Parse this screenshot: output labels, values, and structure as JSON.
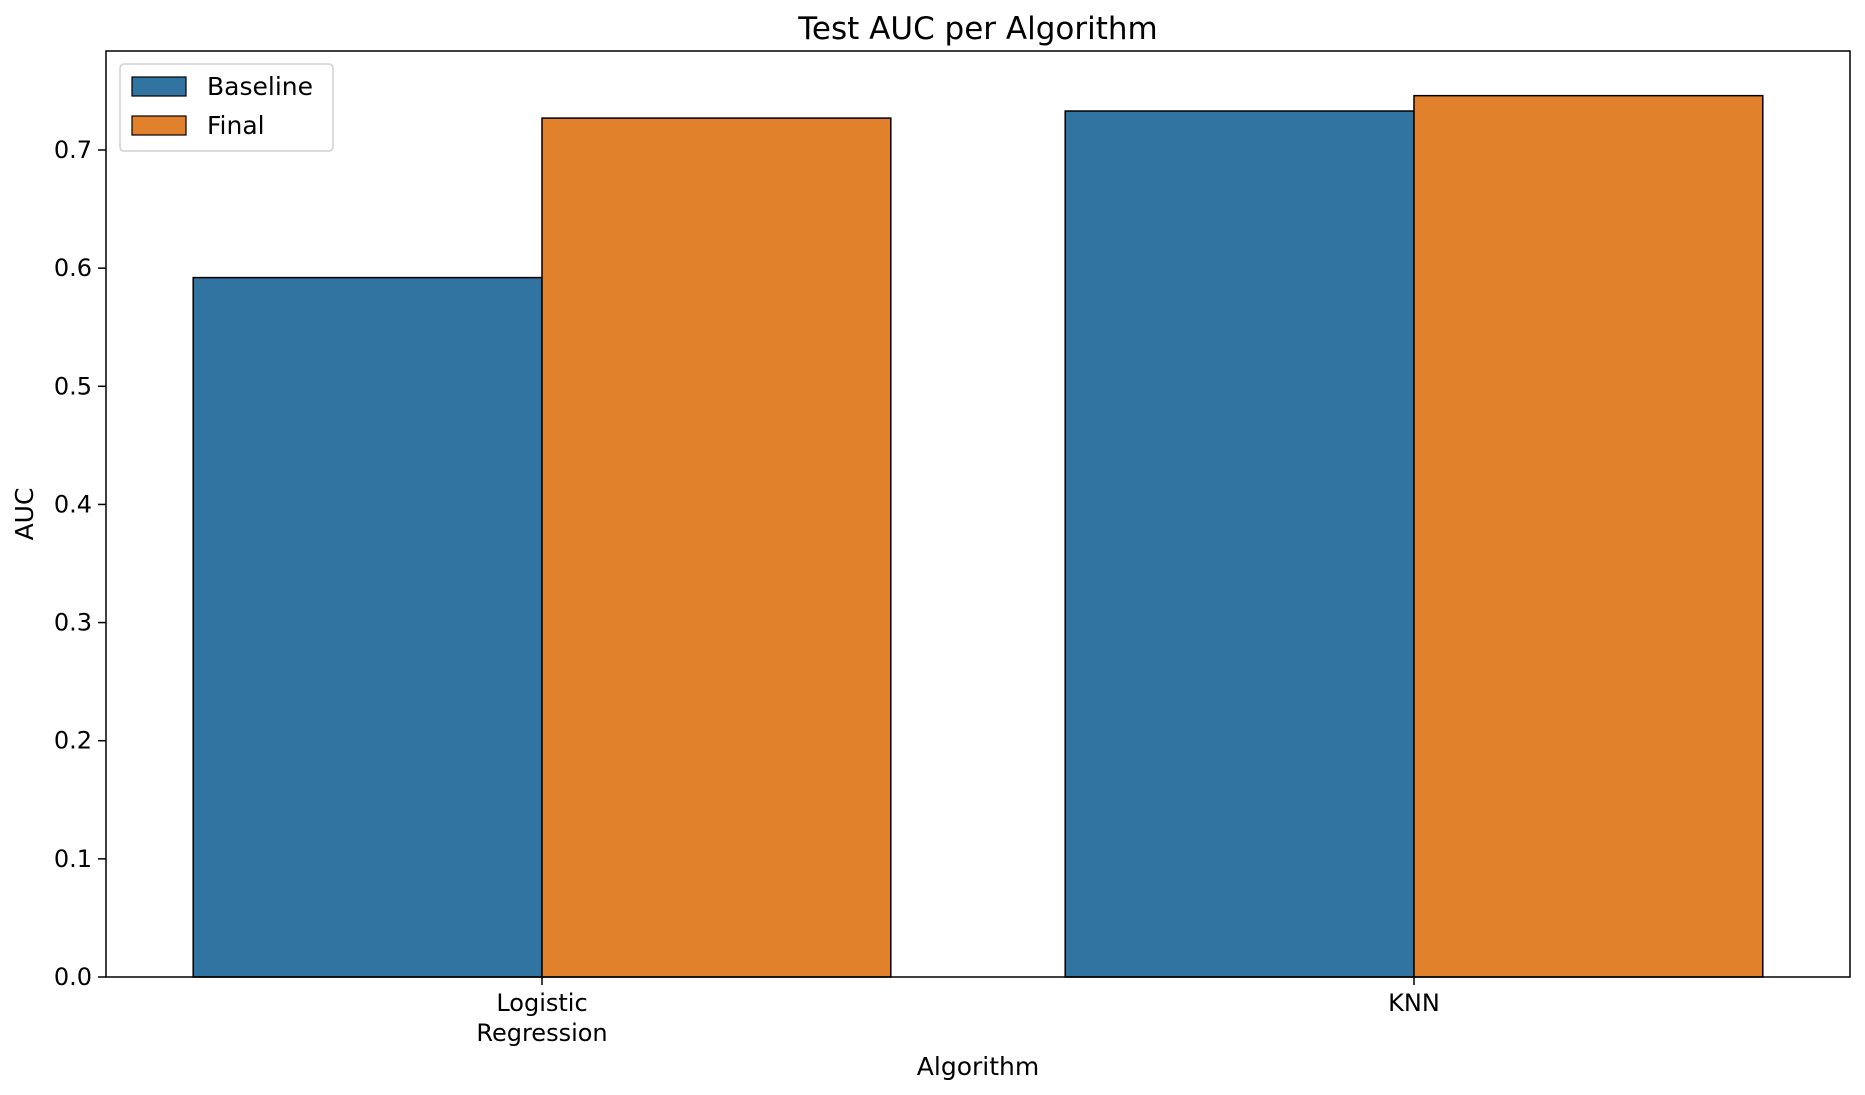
{
  "chart_data": {
    "type": "bar",
    "title": "Test AUC per Algorithm",
    "xlabel": "Algorithm",
    "ylabel": "AUC",
    "categories": [
      [
        "Logistic",
        "Regression"
      ],
      [
        "KNN"
      ]
    ],
    "series": [
      {
        "name": "Baseline",
        "color": "#3274a1",
        "values": [
          0.592,
          0.733
        ]
      },
      {
        "name": "Final",
        "color": "#e1812c",
        "values": [
          0.727,
          0.746
        ]
      }
    ],
    "ylim": [
      0,
      0.7838
    ],
    "yticks": [
      "0.0",
      "0.1",
      "0.2",
      "0.3",
      "0.4",
      "0.5",
      "0.6",
      "0.7"
    ],
    "grid": false,
    "legend": "top-left"
  }
}
